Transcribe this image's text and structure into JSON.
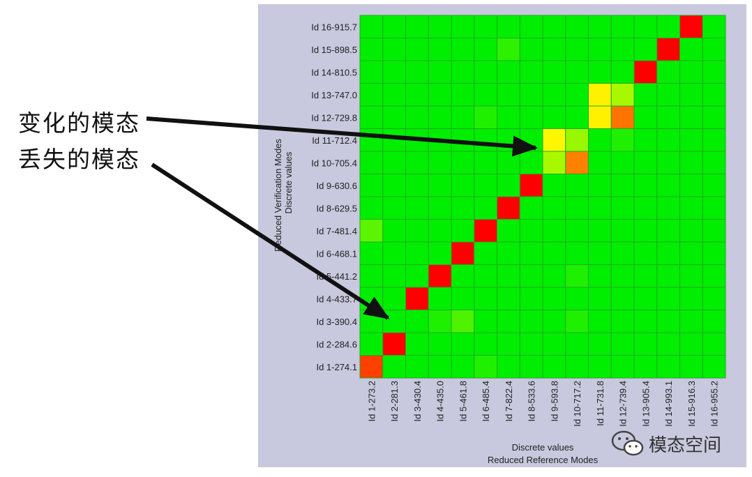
{
  "chart_data": {
    "type": "heatmap",
    "title": "",
    "xlabel": "Reduced Reference Modes",
    "xlabel_sub": "Discrete values",
    "ylabel": "Reduced Verification Modes",
    "ylabel_sub": "Discrete values",
    "x_categories": [
      "Id 1-273.2",
      "Id 2-281.3",
      "Id 3-430.4",
      "Id 4-435.0",
      "Id 5-461.8",
      "Id 6-485.4",
      "Id 7-822.4",
      "Id 8-533.6",
      "Id 9-593.8",
      "Id 10-717.2",
      "Id 11-731.8",
      "Id 12-739.4",
      "Id 13-905.4",
      "Id 14-993.1",
      "Id 15-916.3",
      "Id 16-955.2"
    ],
    "y_categories_top_to_bottom": [
      "Id 16-915.7",
      "Id 15-898.5",
      "Id 14-810.5",
      "Id 13-747.0",
      "Id 12-729.8",
      "Id 11-712.4",
      "Id 10-705.4",
      "Id 9-630.6",
      "Id 8-629.5",
      "Id 7-481.4",
      "Id 6-468.1",
      "Id 5-441.2",
      "Id 4-433.7",
      "Id 3-390.4",
      "Id 2-284.6",
      "Id 1-274.1"
    ],
    "values_top_to_bottom": [
      [
        0,
        0,
        0,
        0,
        0,
        0,
        0,
        0,
        0,
        0,
        0,
        0,
        0,
        0,
        1,
        0
      ],
      [
        0,
        0,
        0,
        0,
        0,
        0,
        0.06,
        0,
        0,
        0,
        0,
        0,
        0,
        1,
        0,
        0
      ],
      [
        0,
        0,
        0,
        0,
        0,
        0,
        0,
        0,
        0,
        0,
        0,
        0,
        1,
        0,
        0,
        0
      ],
      [
        0,
        0,
        0,
        0,
        0,
        0,
        0,
        0,
        0,
        0,
        0.38,
        0.22,
        0,
        0,
        0,
        0
      ],
      [
        0,
        0,
        0,
        0,
        0,
        0.04,
        0,
        0,
        0,
        0,
        0.38,
        0.75,
        0,
        0,
        0,
        0
      ],
      [
        0,
        0,
        0,
        0,
        0,
        0,
        0,
        0,
        0.36,
        0.2,
        0,
        0.04,
        0,
        0,
        0,
        0
      ],
      [
        0,
        0,
        0,
        0,
        0,
        0,
        0,
        0,
        0.22,
        0.72,
        0,
        0,
        0,
        0,
        0,
        0
      ],
      [
        0,
        0,
        0,
        0,
        0,
        0,
        0,
        1,
        0,
        0,
        0,
        0,
        0,
        0,
        0,
        0
      ],
      [
        0,
        0,
        0,
        0,
        0,
        0,
        1,
        0,
        0,
        0,
        0,
        0,
        0,
        0,
        0,
        0
      ],
      [
        0.12,
        0,
        0,
        0,
        0,
        1,
        0,
        0,
        0,
        0,
        0,
        0,
        0,
        0,
        0,
        0
      ],
      [
        0,
        0,
        0,
        0,
        1,
        0,
        0,
        0,
        0,
        0,
        0,
        0,
        0,
        0,
        0,
        0
      ],
      [
        0,
        0,
        0,
        1,
        0,
        0,
        0,
        0,
        0,
        0.04,
        0,
        0,
        0,
        0,
        0,
        0
      ],
      [
        0,
        0,
        1,
        0,
        0,
        0,
        0,
        0,
        0,
        0,
        0,
        0,
        0,
        0,
        0,
        0
      ],
      [
        0,
        0,
        0,
        0.04,
        0.1,
        0,
        0,
        0,
        0,
        0.04,
        0,
        0,
        0,
        0,
        0,
        0
      ],
      [
        0,
        1,
        0,
        0,
        0,
        0,
        0,
        0,
        0,
        0,
        0,
        0,
        0,
        0,
        0,
        0
      ],
      [
        0.86,
        0,
        0,
        0,
        0,
        0.04,
        0,
        0,
        0,
        0,
        0,
        0,
        0,
        0,
        0,
        0
      ]
    ],
    "value_range": [
      0,
      1
    ],
    "colormap": [
      "#00ee00",
      "#ffff00",
      "#ff9900",
      "#ff0000"
    ],
    "grid": true,
    "legend": "none"
  },
  "annotations": [
    {
      "text": "变化的模态",
      "target": "Id 11-712.4 / Id 9-593.8"
    },
    {
      "text": "丢失的模态",
      "target": "Id 2-284.6 / Id 1-273.2"
    }
  ],
  "watermark": {
    "text": "模态空间",
    "icon": "wechat-icon"
  },
  "colors": {
    "panel": "#c8c8de",
    "grid_line": "#22aa22",
    "arrow": "#111111"
  }
}
